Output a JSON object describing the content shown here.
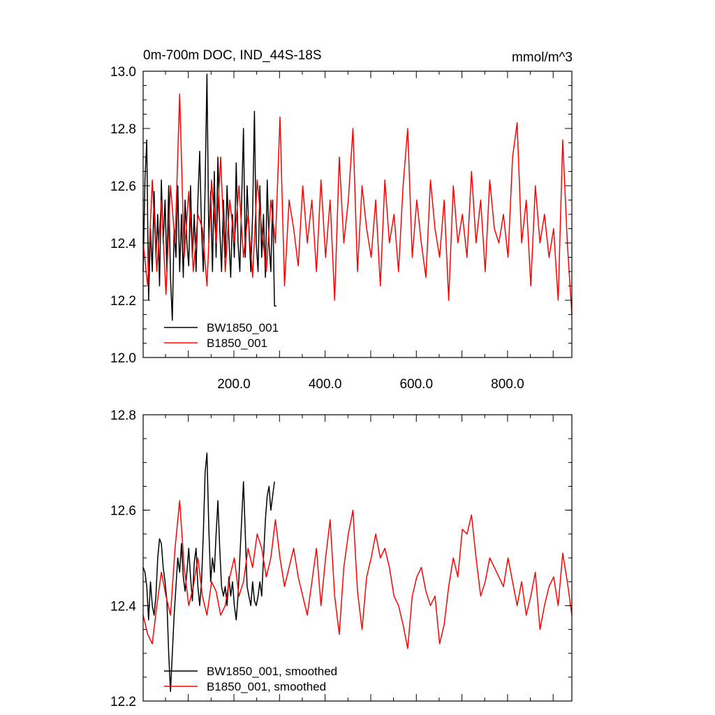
{
  "colors": {
    "BW1850_001": "#000000",
    "B1850_001": "#ff0000"
  },
  "chart_data": [
    {
      "type": "line",
      "title": "0m-700m DOC, IND_44S-18S",
      "units": "mmol/m^3",
      "xlim": [
        1,
        941
      ],
      "ylim": [
        12.0,
        13.0
      ],
      "xticks": [
        200,
        400,
        600,
        800
      ],
      "xtick_labels": [
        "200.0",
        "400.0",
        "600.0",
        "800.0"
      ],
      "yticks": [
        12.0,
        12.2,
        12.4,
        12.6,
        12.8,
        13.0
      ],
      "ytick_labels": [
        "12.0",
        "12.2",
        "12.4",
        "12.6",
        "12.8",
        "13.0"
      ],
      "legend_position": "bottom-left",
      "series": [
        {
          "name": "BW1850_001",
          "color": "#000000",
          "x": [
            1,
            5,
            9,
            13,
            17,
            21,
            25,
            29,
            33,
            37,
            41,
            45,
            49,
            53,
            57,
            61,
            65,
            69,
            73,
            77,
            81,
            85,
            89,
            93,
            97,
            101,
            105,
            109,
            113,
            117,
            121,
            125,
            129,
            133,
            137,
            141,
            145,
            149,
            153,
            157,
            161,
            165,
            169,
            173,
            177,
            181,
            185,
            189,
            193,
            197,
            201,
            205,
            209,
            213,
            217,
            221,
            225,
            229,
            233,
            237,
            241,
            245,
            249,
            253,
            257,
            261,
            265,
            269,
            273,
            277,
            281,
            285,
            289,
            293
          ],
          "values": [
            12.3,
            12.62,
            12.76,
            12.2,
            12.45,
            12.3,
            12.58,
            12.35,
            12.5,
            12.25,
            12.62,
            12.4,
            12.55,
            12.3,
            12.6,
            12.28,
            12.13,
            12.45,
            12.35,
            12.6,
            12.3,
            12.5,
            12.28,
            12.55,
            12.4,
            12.32,
            12.6,
            12.35,
            12.5,
            12.3,
            12.55,
            12.72,
            12.45,
            12.3,
            12.6,
            12.99,
            12.4,
            12.58,
            12.3,
            12.65,
            12.35,
            12.7,
            12.45,
            12.3,
            12.55,
            12.35,
            12.6,
            12.42,
            12.28,
            12.5,
            12.35,
            12.68,
            12.4,
            12.3,
            12.55,
            12.8,
            12.35,
            12.6,
            12.45,
            12.3,
            12.5,
            12.86,
            12.4,
            12.3,
            12.6,
            12.35,
            12.5,
            12.28,
            12.62,
            12.4,
            12.3,
            12.55,
            12.18,
            12.18
          ]
        },
        {
          "name": "B1850_001",
          "color": "#ff0000",
          "x": [
            1,
            11,
            21,
            31,
            41,
            51,
            61,
            71,
            81,
            91,
            101,
            111,
            121,
            131,
            141,
            151,
            161,
            171,
            181,
            191,
            201,
            211,
            221,
            231,
            241,
            251,
            261,
            271,
            281,
            291,
            301,
            311,
            321,
            331,
            341,
            351,
            361,
            371,
            381,
            391,
            401,
            411,
            421,
            431,
            441,
            451,
            461,
            471,
            481,
            491,
            501,
            511,
            521,
            531,
            541,
            551,
            561,
            571,
            581,
            591,
            601,
            611,
            621,
            631,
            641,
            651,
            661,
            671,
            681,
            691,
            701,
            711,
            721,
            731,
            741,
            751,
            761,
            771,
            781,
            791,
            801,
            811,
            821,
            831,
            841,
            851,
            861,
            871,
            881,
            891,
            901,
            911,
            921,
            931,
            941
          ],
          "values": [
            12.4,
            12.25,
            12.62,
            12.3,
            12.55,
            12.22,
            12.6,
            12.4,
            12.92,
            12.35,
            12.58,
            12.3,
            12.5,
            12.45,
            12.25,
            12.62,
            12.4,
            12.7,
            12.3,
            12.55,
            12.4,
            12.6,
            12.35,
            12.5,
            12.28,
            12.62,
            12.45,
            12.3,
            12.55,
            12.4,
            12.84,
            12.25,
            12.55,
            12.45,
            12.32,
            12.6,
            12.4,
            12.55,
            12.3,
            12.62,
            12.35,
            12.55,
            12.2,
            12.7,
            12.4,
            12.55,
            12.8,
            12.3,
            12.6,
            12.45,
            12.35,
            12.55,
            12.25,
            12.62,
            12.4,
            12.5,
            12.3,
            12.6,
            12.8,
            12.35,
            12.55,
            12.4,
            12.28,
            12.62,
            12.45,
            12.35,
            12.55,
            12.2,
            12.6,
            12.4,
            12.5,
            12.35,
            12.65,
            12.4,
            12.55,
            12.3,
            12.62,
            12.45,
            12.4,
            12.5,
            12.35,
            12.7,
            12.82,
            12.4,
            12.55,
            12.25,
            12.6,
            12.4,
            12.5,
            12.35,
            12.45,
            12.2,
            12.76,
            12.4,
            12.15
          ]
        }
      ]
    },
    {
      "type": "line",
      "title": "",
      "xlim": [
        1,
        941
      ],
      "ylim": [
        12.2,
        12.8
      ],
      "yticks": [
        12.2,
        12.4,
        12.6,
        12.8
      ],
      "ytick_labels": [
        "12.2",
        "12.4",
        "12.6",
        "12.8"
      ],
      "legend_position": "bottom-left",
      "series": [
        {
          "name": "BW1850_001, smoothed",
          "color": "#000000",
          "x": [
            1,
            5,
            9,
            13,
            17,
            21,
            25,
            29,
            33,
            37,
            41,
            45,
            49,
            53,
            57,
            61,
            65,
            69,
            73,
            77,
            81,
            85,
            89,
            93,
            97,
            101,
            105,
            109,
            113,
            117,
            121,
            125,
            129,
            133,
            137,
            141,
            145,
            149,
            153,
            157,
            161,
            165,
            169,
            173,
            177,
            181,
            185,
            189,
            193,
            197,
            201,
            205,
            209,
            213,
            217,
            221,
            225,
            229,
            233,
            237,
            241,
            245,
            249,
            253,
            257,
            261,
            265,
            269,
            273,
            277,
            281,
            285,
            289
          ],
          "values": [
            12.48,
            12.47,
            12.44,
            12.37,
            12.45,
            12.4,
            12.38,
            12.42,
            12.5,
            12.54,
            12.53,
            12.48,
            12.45,
            12.41,
            12.3,
            12.22,
            12.3,
            12.38,
            12.44,
            12.5,
            12.47,
            12.53,
            12.46,
            12.43,
            12.47,
            12.52,
            12.46,
            12.41,
            12.49,
            12.52,
            12.44,
            12.4,
            12.45,
            12.55,
            12.68,
            12.72,
            12.56,
            12.45,
            12.5,
            12.47,
            12.55,
            12.62,
            12.52,
            12.44,
            12.42,
            12.44,
            12.4,
            12.46,
            12.42,
            12.45,
            12.4,
            12.37,
            12.42,
            12.5,
            12.58,
            12.66,
            12.55,
            12.44,
            12.42,
            12.4,
            12.45,
            12.41,
            12.4,
            12.42,
            12.45,
            12.42,
            12.5,
            12.58,
            12.63,
            12.65,
            12.6,
            12.63,
            12.66
          ]
        },
        {
          "name": "B1850_001, smoothed",
          "color": "#ff0000",
          "x": [
            1,
            11,
            21,
            31,
            41,
            51,
            61,
            71,
            81,
            91,
            101,
            111,
            121,
            131,
            141,
            151,
            161,
            171,
            181,
            191,
            201,
            211,
            221,
            231,
            241,
            251,
            261,
            271,
            281,
            291,
            301,
            311,
            321,
            331,
            341,
            351,
            361,
            371,
            381,
            391,
            401,
            411,
            421,
            431,
            441,
            451,
            461,
            471,
            481,
            491,
            501,
            511,
            521,
            531,
            541,
            551,
            561,
            571,
            581,
            591,
            601,
            611,
            621,
            631,
            641,
            651,
            661,
            671,
            681,
            691,
            701,
            711,
            721,
            731,
            741,
            751,
            761,
            771,
            781,
            791,
            801,
            811,
            821,
            831,
            841,
            851,
            861,
            871,
            881,
            891,
            901,
            911,
            921,
            931,
            941
          ],
          "values": [
            12.38,
            12.34,
            12.32,
            12.4,
            12.47,
            12.42,
            12.38,
            12.52,
            12.62,
            12.48,
            12.4,
            12.44,
            12.5,
            12.42,
            12.38,
            12.45,
            12.43,
            12.38,
            12.4,
            12.46,
            12.5,
            12.42,
            12.45,
            12.52,
            12.48,
            12.55,
            12.52,
            12.46,
            12.5,
            12.58,
            12.5,
            12.44,
            12.48,
            12.52,
            12.46,
            12.42,
            12.38,
            12.45,
            12.52,
            12.4,
            12.5,
            12.58,
            12.42,
            12.34,
            12.48,
            12.55,
            12.6,
            12.43,
            12.35,
            12.46,
            12.5,
            12.55,
            12.5,
            12.52,
            12.48,
            12.42,
            12.4,
            12.36,
            12.31,
            12.42,
            12.46,
            12.48,
            12.43,
            12.4,
            12.42,
            12.32,
            12.36,
            12.44,
            12.5,
            12.46,
            12.56,
            12.55,
            12.59,
            12.5,
            12.42,
            12.45,
            12.5,
            12.48,
            12.46,
            12.44,
            12.5,
            12.45,
            12.4,
            12.45,
            12.38,
            12.42,
            12.47,
            12.35,
            12.4,
            12.44,
            12.46,
            12.4,
            12.51,
            12.45,
            12.38
          ]
        }
      ]
    }
  ]
}
